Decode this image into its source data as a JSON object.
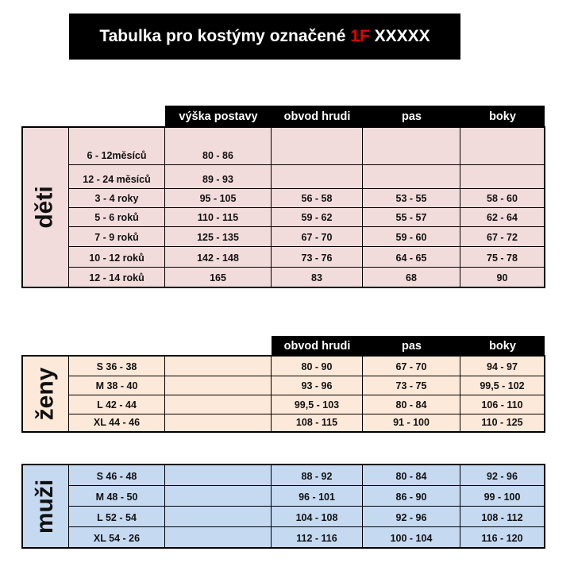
{
  "title": {
    "prefix": "Tabulka pro kostýmy označené ",
    "highlight": "1F",
    "suffix": " XXXXX",
    "highlight_color": "#e00000"
  },
  "colors": {
    "deti": "#f2dcdb",
    "zeny": "#fde9d9",
    "muzi": "#c5d9f1",
    "header": "#000000"
  },
  "deti": {
    "label": "děti",
    "headers": [
      "výška postavy",
      "obvod hrudi",
      "pas",
      "boky"
    ],
    "rows": [
      [
        "6 - 12měsíců",
        "80 - 86",
        "",
        "",
        ""
      ],
      [
        "12 - 24 měsíců",
        "89 - 93",
        "",
        "",
        ""
      ],
      [
        "3 - 4 roky",
        "95 - 105",
        "56 - 58",
        "53 - 55",
        "58 - 60"
      ],
      [
        "5 - 6 roků",
        "110 - 115",
        "59 - 62",
        "55 - 57",
        "62 - 64"
      ],
      [
        "7 - 9 roků",
        "125 - 135",
        "67 - 70",
        "59 - 60",
        "67 - 72"
      ],
      [
        "10 - 12 roků",
        "142 - 148",
        "73 - 76",
        "64 - 65",
        "75 - 78"
      ],
      [
        "12 - 14 roků",
        "165",
        "83",
        "68",
        "90"
      ]
    ]
  },
  "zeny": {
    "label": "ženy",
    "headers": [
      "obvod hrudi",
      "pas",
      "boky"
    ],
    "rows": [
      [
        "S 36 - 38",
        "",
        "80 - 90",
        "67 - 70",
        "94 - 97"
      ],
      [
        "M 38 - 40",
        "",
        "93 - 96",
        "73 - 75",
        "99,5 - 102"
      ],
      [
        "L 42 - 44",
        "",
        "99,5 - 103",
        "80 - 84",
        "106 - 110"
      ],
      [
        "XL 44 - 46",
        "",
        "108 - 115",
        "91 - 100",
        "110 - 125"
      ]
    ]
  },
  "muzi": {
    "label": "muži",
    "rows": [
      [
        "S 46 - 48",
        "",
        "88 - 92",
        "80 - 84",
        "92 - 96"
      ],
      [
        "M 48 - 50",
        "",
        "96 - 101",
        "86 - 90",
        "99 - 100"
      ],
      [
        "L 52 - 54",
        "",
        "104 - 108",
        "92 - 96",
        "108 - 112"
      ],
      [
        "XL 54 - 26",
        "",
        "112 - 116",
        "100 - 104",
        "116 - 120"
      ]
    ]
  }
}
